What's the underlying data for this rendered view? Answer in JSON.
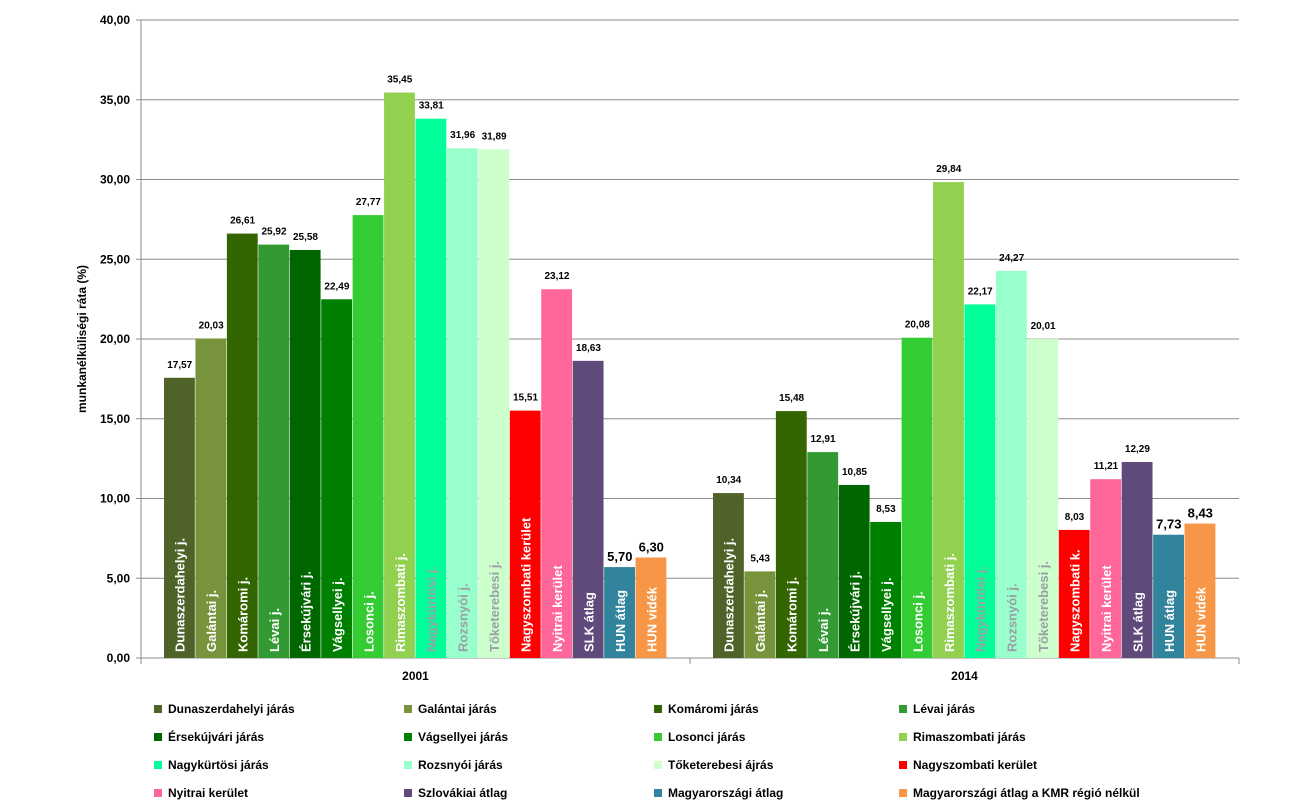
{
  "chart_data": {
    "type": "bar",
    "title": "",
    "xlabel": "",
    "ylabel": "munkanélküliségi ráta (%)",
    "ylim": [
      0,
      40
    ],
    "ytick_step": 5,
    "grid": true,
    "legend_position": "bottom",
    "categories": [
      "2001",
      "2014"
    ],
    "series": [
      {
        "name": "Dunaszerdahelyi járás",
        "color": "#4F6228",
        "values": [
          17.57,
          10.34
        ],
        "labels": [
          "Dunaszerdahelyi j.",
          "Dunaszerdahelyi j."
        ],
        "label_color": "#ffffff"
      },
      {
        "name": "Galántai járás",
        "color": "#77933C",
        "values": [
          20.03,
          5.43
        ],
        "labels": [
          "Galántai j.",
          "Galántai j."
        ],
        "label_color": "#ffffff"
      },
      {
        "name": "Komáromi járás",
        "color": "#336600",
        "values": [
          26.61,
          15.48
        ],
        "labels": [
          "Komáromi j.",
          "Komáromi j."
        ],
        "label_color": "#ffffff"
      },
      {
        "name": "Lévai járás",
        "color": "#339933",
        "values": [
          25.92,
          12.91
        ],
        "labels": [
          "Lévai j.",
          "Lévai j."
        ],
        "label_color": "#ffffff"
      },
      {
        "name": "Érsekújvári járás",
        "color": "#006600",
        "values": [
          25.58,
          10.85
        ],
        "labels": [
          "Érsekújvári j.",
          "Érsekújvári j."
        ],
        "label_color": "#ffffff"
      },
      {
        "name": "Vágsellyei járás",
        "color": "#008000",
        "values": [
          22.49,
          8.53
        ],
        "labels": [
          "Vágsellyei j.",
          "Vágsellyei j."
        ],
        "label_color": "#ffffff"
      },
      {
        "name": "Losonci járás",
        "color": "#33CC33",
        "values": [
          27.77,
          20.08
        ],
        "labels": [
          "Losonci j.",
          "Losonci j."
        ],
        "label_color": "#ffffff"
      },
      {
        "name": "Rimaszombati járás",
        "color": "#92D050",
        "values": [
          35.45,
          29.84
        ],
        "labels": [
          "Rimaszombati j.",
          "Rimaszombati j."
        ],
        "label_color": "#ffffff"
      },
      {
        "name": "Nagykürtösi járás",
        "color": "#00FF99",
        "values": [
          33.81,
          22.17
        ],
        "labels": [
          "Nagykürtösi j.",
          "Nagykürtösi j."
        ],
        "label_color": "#9aa0a6"
      },
      {
        "name": "Rozsnyói járás",
        "color": "#99FFCC",
        "values": [
          31.96,
          24.27
        ],
        "labels": [
          "Rozsnyói j.",
          "Rozsnyói j."
        ],
        "label_color": "#9aa0a6"
      },
      {
        "name": "Tőketerebesi ájrás",
        "color": "#CCFFCC",
        "values": [
          31.89,
          20.01
        ],
        "labels": [
          "Tőketerebesi j.",
          "Tőketerebesi j."
        ],
        "label_color": "#9aa0a6"
      },
      {
        "name": "Nagyszombati kerület",
        "color": "#FF0000",
        "values": [
          15.51,
          8.03
        ],
        "labels": [
          "Nagyszombati kerület",
          "Nagyszombati k."
        ],
        "label_color": "#ffffff"
      },
      {
        "name": "Nyitrai kerület",
        "color": "#FF6699",
        "values": [
          23.12,
          11.21
        ],
        "labels": [
          "Nyitrai kerület",
          "Nyitrai kerület"
        ],
        "label_color": "#ffffff"
      },
      {
        "name": "Szlovákiai átlag",
        "color": "#604A7B",
        "values": [
          18.63,
          12.29
        ],
        "labels": [
          "SLK átlag",
          "SLK átlag"
        ],
        "label_color": "#ffffff"
      },
      {
        "name": "Magyarországi átlag",
        "color": "#31849B",
        "values": [
          5.7,
          7.73
        ],
        "labels": [
          "HUN átlag",
          "HUN átlag"
        ],
        "label_color": "#ffffff",
        "big_value_label": true
      },
      {
        "name": "Magyarországi átlag a KMR régió nélkül",
        "color": "#F79646",
        "values": [
          6.3,
          8.43
        ],
        "labels": [
          "HUN vidék",
          "HUN vidék"
        ],
        "label_color": "#ffffff",
        "big_value_label": true
      }
    ]
  }
}
